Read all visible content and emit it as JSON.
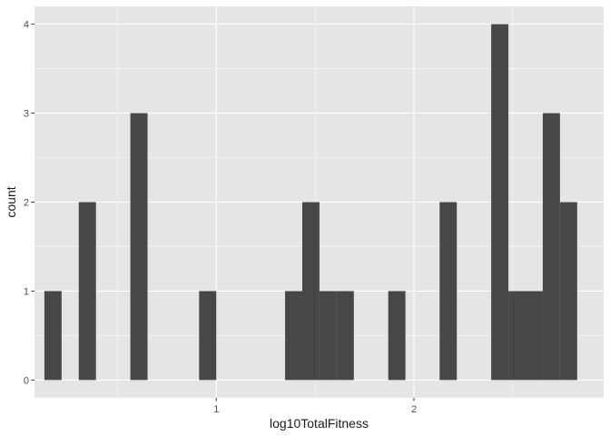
{
  "chart_data": {
    "type": "bar",
    "title": "",
    "xlabel": "log10TotalFitness",
    "ylabel": "count",
    "xlim": [
      0.08,
      2.96
    ],
    "ylim": [
      -0.2,
      4.2
    ],
    "x_ticks": [
      1,
      2
    ],
    "x_tick_labels": [
      "1",
      "2"
    ],
    "y_ticks": [
      0,
      1,
      2,
      3,
      4
    ],
    "y_tick_labels": [
      "0",
      "1",
      "2",
      "3",
      "4"
    ],
    "bin_width": 0.087,
    "bins": [
      {
        "x0": 0.13,
        "x1": 0.217,
        "count": 1
      },
      {
        "x0": 0.304,
        "x1": 0.391,
        "count": 2
      },
      {
        "x0": 0.565,
        "x1": 0.652,
        "count": 3
      },
      {
        "x0": 0.913,
        "x1": 1.0,
        "count": 1
      },
      {
        "x0": 1.348,
        "x1": 1.435,
        "count": 1
      },
      {
        "x0": 1.435,
        "x1": 1.522,
        "count": 2
      },
      {
        "x0": 1.522,
        "x1": 1.609,
        "count": 1
      },
      {
        "x0": 1.609,
        "x1": 1.696,
        "count": 1
      },
      {
        "x0": 1.87,
        "x1": 1.957,
        "count": 1
      },
      {
        "x0": 2.13,
        "x1": 2.217,
        "count": 2
      },
      {
        "x0": 2.391,
        "x1": 2.478,
        "count": 4
      },
      {
        "x0": 2.478,
        "x1": 2.565,
        "count": 1
      },
      {
        "x0": 2.565,
        "x1": 2.652,
        "count": 1
      },
      {
        "x0": 2.652,
        "x1": 2.739,
        "count": 3
      },
      {
        "x0": 2.739,
        "x1": 2.826,
        "count": 2
      }
    ],
    "grid": true,
    "colors": {
      "panel_background": "#e5e5e5",
      "grid_major": "#ffffff",
      "bar_fill": "#474747",
      "tick_label": "#4d4d4d",
      "axis_title": "#1a1a1a"
    }
  }
}
